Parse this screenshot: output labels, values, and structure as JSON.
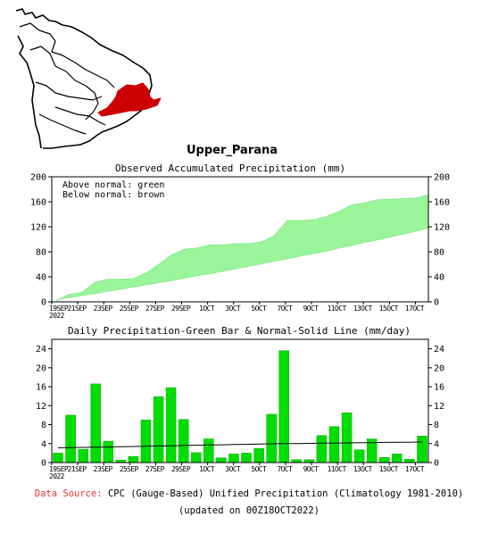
{
  "region_title": "Upper_Parana",
  "footer": {
    "source_label": "Data Source:",
    "source_text": "CPC (Gauge-Based) Unified Precipitation (Climatology 1981-2010)",
    "updated": "(updated on 00Z18OCT2022)"
  },
  "colors": {
    "green": "#9af59a",
    "bar": "#00dd00",
    "map_highlight": "#cc0000",
    "source_label": "#e8322a"
  },
  "chart_data": [
    {
      "type": "area",
      "title": "Observed Accumulated Precipitation (mm)",
      "legend_lines": [
        "Above normal: green",
        "Below normal: brown"
      ],
      "ylim": [
        0,
        200
      ],
      "yticks": [
        "0",
        "40",
        "80",
        "120",
        "160",
        "200"
      ],
      "xtick_labels": [
        "19SEP\n2022",
        "21SEP",
        "23SEP",
        "25SEP",
        "27SEP",
        "29SEP",
        "1OCT",
        "3OCT",
        "5OCT",
        "7OCT",
        "9OCT",
        "11OCT",
        "13OCT",
        "15OCT",
        "17OCT"
      ],
      "x": [
        "19SEP",
        "20SEP",
        "21SEP",
        "22SEP",
        "23SEP",
        "24SEP",
        "25SEP",
        "26SEP",
        "27SEP",
        "28SEP",
        "29SEP",
        "30SEP",
        "1OCT",
        "2OCT",
        "3OCT",
        "4OCT",
        "5OCT",
        "6OCT",
        "7OCT",
        "8OCT",
        "9OCT",
        "10OCT",
        "11OCT",
        "12OCT",
        "13OCT",
        "14OCT",
        "15OCT",
        "16OCT",
        "17OCT",
        "18OCT"
      ],
      "series": [
        {
          "name": "observed",
          "values": [
            2,
            12,
            15,
            31,
            36,
            36,
            37,
            46,
            60,
            75,
            84,
            86,
            91,
            91,
            93,
            93,
            96,
            106,
            130,
            130,
            131,
            136,
            144,
            155,
            158,
            163,
            164,
            165,
            166,
            171
          ]
        },
        {
          "name": "normal",
          "values": [
            3,
            7,
            10,
            13,
            17,
            20,
            24,
            27,
            31,
            34,
            38,
            42,
            45,
            49,
            53,
            57,
            61,
            65,
            69,
            73,
            77,
            81,
            86,
            90,
            95,
            99,
            104,
            108,
            113,
            118
          ]
        }
      ]
    },
    {
      "type": "bar",
      "title": "Daily Precipitation-Green Bar & Normal-Solid Line (mm/day)",
      "ylim": [
        0,
        26
      ],
      "yticks": [
        "0",
        "4",
        "8",
        "12",
        "16",
        "20",
        "24"
      ],
      "xtick_labels": [
        "19SEP\n2022",
        "21SEP",
        "23SEP",
        "25SEP",
        "27SEP",
        "29SEP",
        "1OCT",
        "3OCT",
        "5OCT",
        "7OCT",
        "9OCT",
        "11OCT",
        "13OCT",
        "15OCT",
        "17OCT"
      ],
      "categories": [
        "19SEP",
        "20SEP",
        "21SEP",
        "22SEP",
        "23SEP",
        "24SEP",
        "25SEP",
        "26SEP",
        "27SEP",
        "28SEP",
        "29SEP",
        "30SEP",
        "1OCT",
        "2OCT",
        "3OCT",
        "4OCT",
        "5OCT",
        "6OCT",
        "7OCT",
        "8OCT",
        "9OCT",
        "10OCT",
        "11OCT",
        "12OCT",
        "13OCT",
        "14OCT",
        "15OCT",
        "16OCT",
        "17OCT",
        "18OCT"
      ],
      "series": [
        {
          "name": "daily",
          "values": [
            2.0,
            10.0,
            2.8,
            16.6,
            4.5,
            0.5,
            1.3,
            9.0,
            13.9,
            15.8,
            9.1,
            2.1,
            5.0,
            1.0,
            1.8,
            2.0,
            3.0,
            10.2,
            23.6,
            0.6,
            0.6,
            5.7,
            7.6,
            10.5,
            2.7,
            5.0,
            1.1,
            1.8,
            0.7,
            5.6
          ]
        },
        {
          "name": "normal",
          "values": [
            3.1,
            3.15,
            3.2,
            3.25,
            3.3,
            3.35,
            3.4,
            3.45,
            3.5,
            3.55,
            3.6,
            3.65,
            3.7,
            3.75,
            3.8,
            3.85,
            3.9,
            3.95,
            4.0,
            4.0,
            4.05,
            4.1,
            4.1,
            4.15,
            4.2,
            4.2,
            4.25,
            4.3,
            4.3,
            4.35
          ]
        }
      ]
    }
  ]
}
